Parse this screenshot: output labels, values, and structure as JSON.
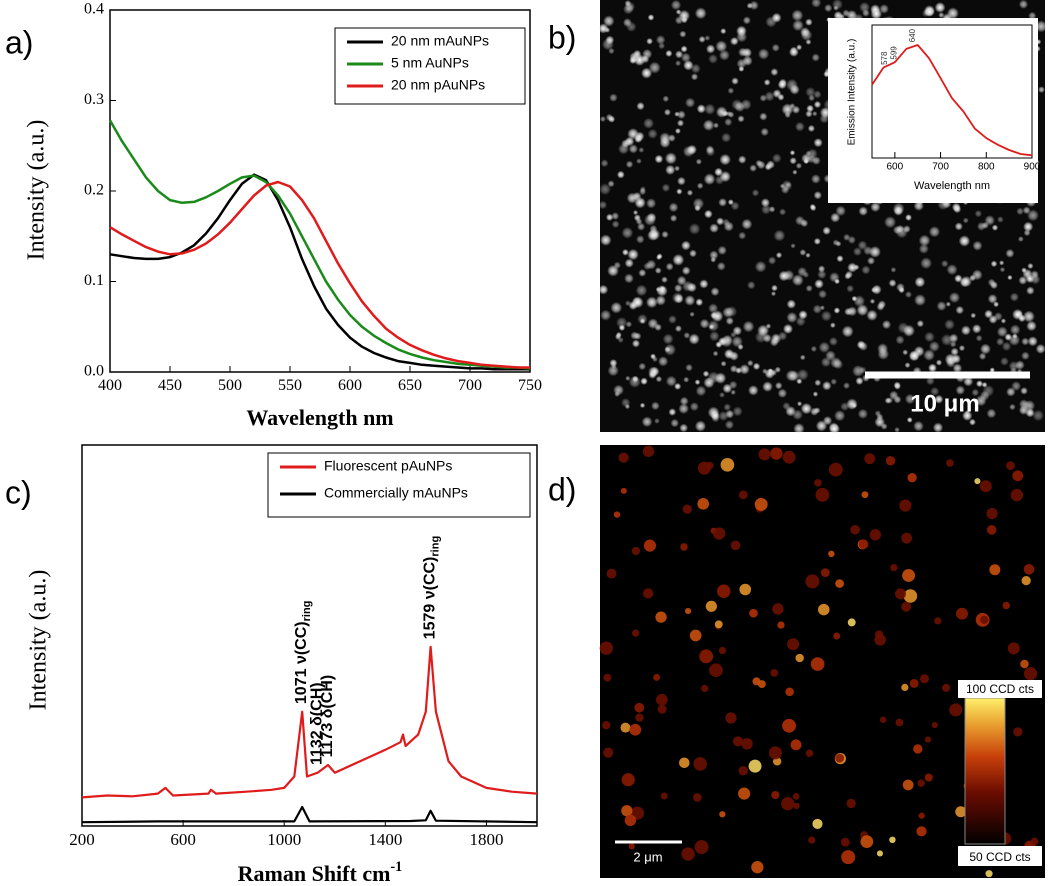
{
  "chart_data": [
    {
      "type": "line",
      "panel_label": "a)",
      "xlabel": "Wavelength nm",
      "ylabel": "Intensity (a.u.)",
      "x": [
        400,
        410,
        420,
        430,
        440,
        450,
        460,
        470,
        480,
        490,
        500,
        510,
        520,
        530,
        540,
        550,
        560,
        570,
        580,
        590,
        600,
        610,
        620,
        630,
        640,
        650,
        660,
        670,
        680,
        690,
        700,
        710,
        720,
        730,
        740,
        750
      ],
      "series": [
        {
          "name": "20 nm mAuNPs",
          "color": "#000000",
          "values": [
            0.13,
            0.128,
            0.126,
            0.125,
            0.125,
            0.127,
            0.132,
            0.14,
            0.153,
            0.17,
            0.19,
            0.208,
            0.218,
            0.212,
            0.19,
            0.16,
            0.125,
            0.095,
            0.07,
            0.052,
            0.038,
            0.028,
            0.021,
            0.016,
            0.012,
            0.01,
            0.008,
            0.007,
            0.006,
            0.005,
            0.004,
            0.004,
            0.003,
            0.003,
            0.003,
            0.003
          ]
        },
        {
          "name": "5 nm AuNPs",
          "color": "#1a8a1a",
          "values": [
            0.278,
            0.255,
            0.235,
            0.215,
            0.2,
            0.19,
            0.187,
            0.188,
            0.193,
            0.2,
            0.208,
            0.215,
            0.217,
            0.21,
            0.195,
            0.175,
            0.15,
            0.125,
            0.1,
            0.08,
            0.063,
            0.05,
            0.04,
            0.032,
            0.025,
            0.02,
            0.016,
            0.013,
            0.011,
            0.009,
            0.008,
            0.007,
            0.006,
            0.005,
            0.005,
            0.004
          ]
        },
        {
          "name": "20 nm pAuNPs",
          "color": "#e01b1b",
          "values": [
            0.16,
            0.152,
            0.145,
            0.138,
            0.133,
            0.13,
            0.131,
            0.135,
            0.142,
            0.152,
            0.165,
            0.18,
            0.195,
            0.206,
            0.21,
            0.205,
            0.19,
            0.17,
            0.145,
            0.12,
            0.098,
            0.078,
            0.062,
            0.048,
            0.038,
            0.03,
            0.024,
            0.019,
            0.015,
            0.012,
            0.01,
            0.008,
            0.007,
            0.006,
            0.005,
            0.005
          ]
        }
      ],
      "xlim": [
        400,
        750
      ],
      "xticks": [
        400,
        450,
        500,
        550,
        600,
        650,
        700,
        750
      ],
      "ylim": [
        0,
        0.4
      ],
      "yticks": [
        {
          "value": 0,
          "label": "0.0"
        },
        0.1,
        0.2,
        0.3,
        0.4
      ]
    },
    {
      "type": "line",
      "xlabel": "Wavelength nm",
      "ylabel": "Emission Intensity (a.u.)",
      "x": [
        550,
        575,
        600,
        625,
        650,
        675,
        700,
        725,
        750,
        775,
        800,
        825,
        850,
        875,
        900
      ],
      "series": [
        {
          "color": "#e01b1b",
          "values": [
            0.55,
            0.68,
            0.72,
            0.82,
            0.85,
            0.75,
            0.6,
            0.45,
            0.35,
            0.22,
            0.15,
            0.1,
            0.06,
            0.03,
            0.02
          ]
        }
      ],
      "xlim": [
        550,
        900
      ],
      "xticks": [
        600,
        700,
        800,
        900
      ],
      "ylim": [
        0,
        1
      ],
      "annotations": [
        {
          "x": 578,
          "y": 0.7,
          "text": "578"
        },
        {
          "x": 599,
          "y": 0.74,
          "text": "599"
        },
        {
          "x": 640,
          "y": 0.87,
          "text": "640"
        }
      ]
    },
    {
      "type": "line",
      "panel_label": "c)",
      "xlabel": "Raman Shift cm",
      "xlabel_sup": "-1",
      "ylabel": "Intensity (a.u.)",
      "series": [
        {
          "name": "Fluorescent pAuNPs",
          "color": "#e01b1b",
          "x": [
            200,
            300,
            400,
            500,
            530,
            560,
            700,
            710,
            730,
            850,
            950,
            1000,
            1040,
            1071,
            1090,
            1132,
            1173,
            1200,
            1300,
            1400,
            1460,
            1470,
            1480,
            1530,
            1560,
            1579,
            1600,
            1650,
            1700,
            1800,
            1900,
            2000
          ],
          "values": [
            0.075,
            0.08,
            0.078,
            0.085,
            0.1,
            0.08,
            0.085,
            0.095,
            0.085,
            0.09,
            0.095,
            0.1,
            0.13,
            0.3,
            0.13,
            0.14,
            0.16,
            0.14,
            0.17,
            0.2,
            0.22,
            0.24,
            0.21,
            0.24,
            0.3,
            0.47,
            0.3,
            0.17,
            0.13,
            0.1,
            0.09,
            0.085
          ]
        },
        {
          "name": "Commercially mAuNPs",
          "color": "#000000",
          "x": [
            200,
            500,
            1040,
            1071,
            1100,
            1500,
            1560,
            1579,
            1600,
            2000
          ],
          "values": [
            0.01,
            0.012,
            0.012,
            0.05,
            0.012,
            0.013,
            0.015,
            0.04,
            0.014,
            0.01
          ]
        }
      ],
      "xlim": [
        200,
        2000
      ],
      "xticks": [
        200,
        600,
        1000,
        1400,
        1800
      ],
      "ylim": [
        0,
        1
      ],
      "annotations": [
        {
          "x": 1071,
          "y": 0.32,
          "text": "1071 ν(CC)",
          "sub": "ring"
        },
        {
          "x": 1132,
          "y": 0.16,
          "text": "1132 δ(CH)"
        },
        {
          "x": 1173,
          "y": 0.18,
          "text": "1173 δ(CH)"
        },
        {
          "x": 1579,
          "y": 0.49,
          "text": "1579 ν(CC)",
          "sub": "ring"
        }
      ]
    }
  ],
  "panels": {
    "b": {
      "label": "b)",
      "scale_bar": "10 μm"
    },
    "d": {
      "label": "d)",
      "scale_bar": "2 μm",
      "colorbar_max": "100 CCD cts",
      "colorbar_min": "50 CCD cts"
    }
  }
}
